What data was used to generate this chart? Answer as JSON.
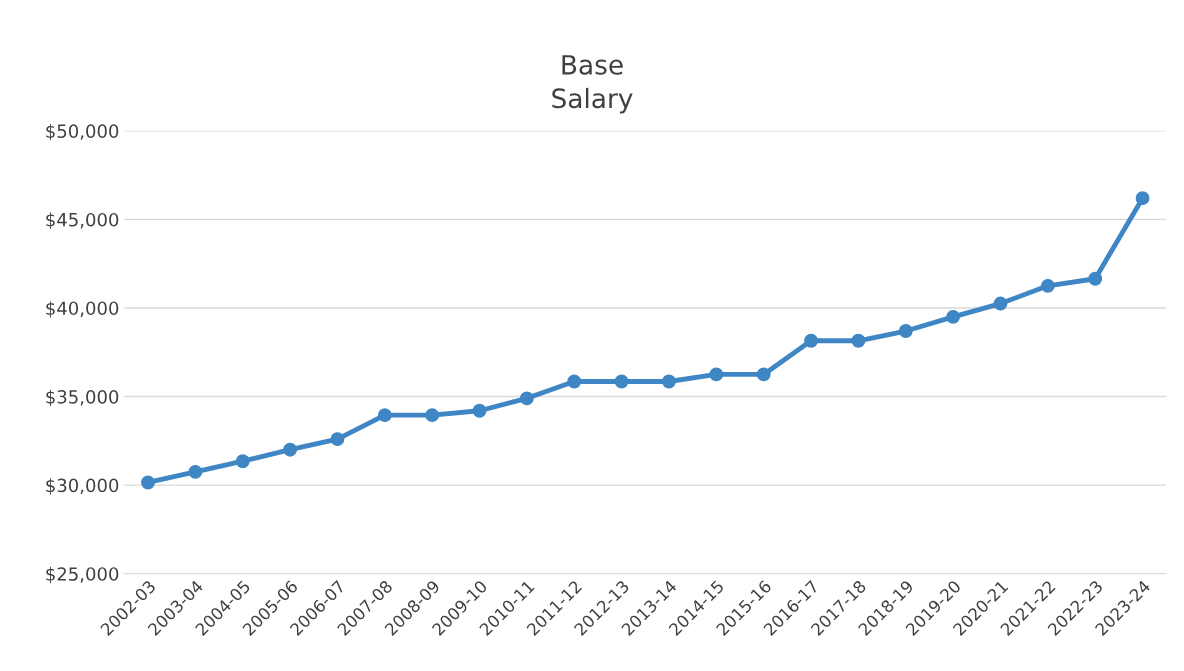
{
  "chart_data": {
    "type": "line",
    "title": "Base\nSalary",
    "categories": [
      "2002-03",
      "2003-04",
      "2004-05",
      "2005-06",
      "2006-07",
      "2007-08",
      "2008-09",
      "2009-10",
      "2010-11",
      "2011-12",
      "2012-13",
      "2013-14",
      "2014-15",
      "2015-16",
      "2016-17",
      "2017-18",
      "2018-19",
      "2019-20",
      "2020-21",
      "2021-22",
      "2022-23",
      "2023-24"
    ],
    "series": [
      {
        "color": "#3f86c4",
        "values": [
          30150,
          30750,
          31350,
          32000,
          32600,
          33950,
          33950,
          34200,
          34900,
          35850,
          35850,
          35850,
          36250,
          36250,
          38150,
          38150,
          38700,
          39500,
          40250,
          41250,
          41650,
          46200
        ]
      }
    ],
    "ylim": [
      25000,
      50000
    ],
    "yticks": [
      {
        "value": 25000,
        "label": "$25,000"
      },
      {
        "value": 30000,
        "label": "$30,000"
      },
      {
        "value": 35000,
        "label": "$35,000"
      },
      {
        "value": 40000,
        "label": "$40,000"
      },
      {
        "value": 45000,
        "label": "$45,000"
      },
      {
        "value": 50000,
        "label": "$50,000"
      }
    ],
    "grid": "y",
    "marker": "circle",
    "line_style": "solid"
  }
}
